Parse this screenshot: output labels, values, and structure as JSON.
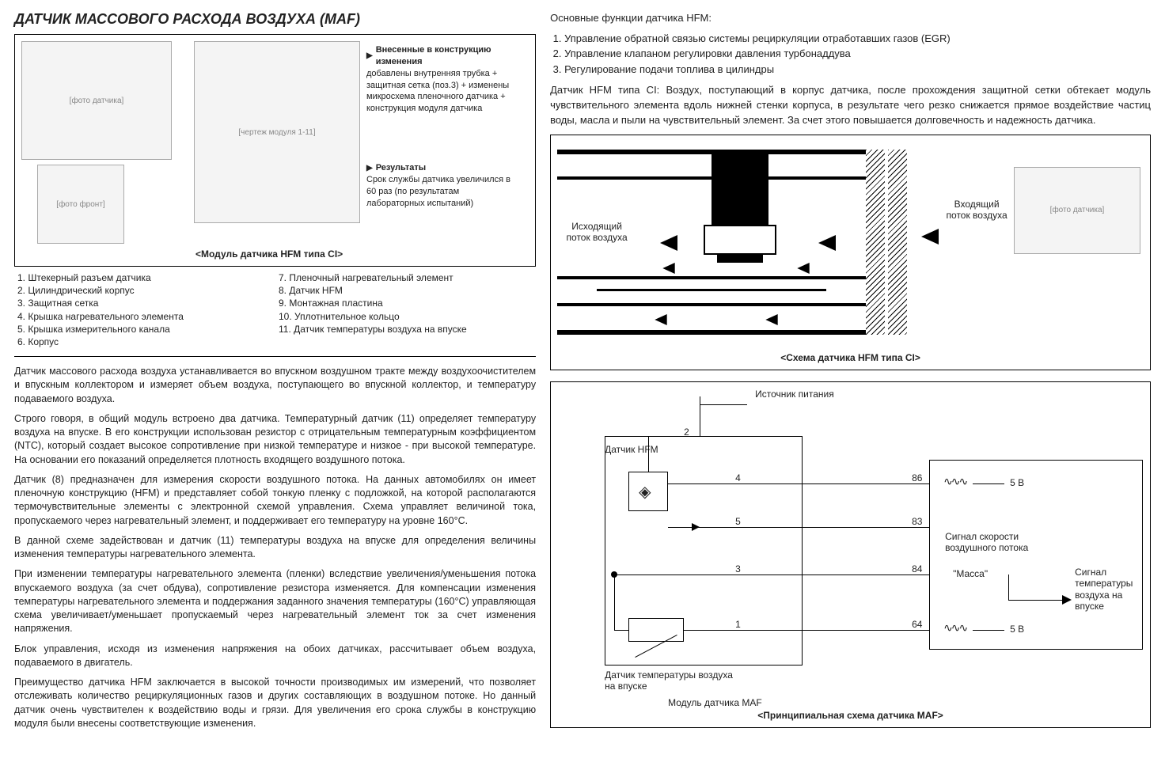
{
  "title": "ДАТЧИК МАССОВОГО РАСХОДА ВОЗДУХА (MAF)",
  "fig1": {
    "caption": "<Модуль датчика HFM типа CI>",
    "changes_hd": "Внесенные в конструкцию изменения",
    "changes_body": "добавлены внутренняя трубка + защитная сетка (поз.3) + изменены микросхема пленочного датчика + конструкция модуля датчика",
    "results_hd": "Результаты",
    "results_body": "Срок службы датчика увеличился в 60 раз (по результатам лабораторных испытаний)",
    "img1_alt": "[фото датчика]",
    "img2_alt": "[фото фронт]",
    "img3_alt": "[чертеж модуля 1-11]"
  },
  "legend_a": [
    "1.  Штекерный разъем датчика",
    "2.  Цилиндрический корпус",
    "3.  Защитная сетка",
    "4.  Крышка нагревательного элемента",
    "5.  Крышка измерительного канала",
    "6.  Корпус"
  ],
  "legend_b": [
    "7.  Пленочный нагревательный элемент",
    "8.  Датчик HFM",
    "9.  Монтажная пластина",
    "10. Уплотнительное кольцо",
    "11. Датчик температуры воздуха на впуске"
  ],
  "p1": "Датчик массового расхода воздуха устанавливается во впускном воздушном тракте между воздухоочистителем и впускным коллектором и измеряет объем воздуха, поступающего во впускной коллектор, и температуру подаваемого воздуха.",
  "p2": "Строго говоря, в общий модуль встроено два датчика. Температурный датчик (11) определяет температуру воздуха на впуске. В его конструкции использован резистор с отрицательным температурным коэффициентом (NTC), который создает высокое сопротивление при низкой температуре и низкое - при высокой температуре. На основании его показаний определяется плотность входящего воздушного потока.",
  "p3": "Датчик (8) предназначен для измерения скорости воздушного потока. На данных автомобилях он имеет пленочную конструкцию (HFM) и представляет собой тонкую пленку с подложкой, на которой располагаются термочувствительные элементы с электронной схемой управления. Схема управляет величиной тока, пропускаемого через нагревательный элемент, и поддерживает его температуру на уровне 160°C.",
  "p4": "В данной схеме задействован и датчик (11) температуры воздуха на впуске для определения величины изменения температуры нагревательного элемента.",
  "p5": "При изменении температуры нагревательного элемента (пленки) вследствие увеличения/уменьшения потока впускаемого воздуха (за счет обдува), сопротивление резистора изменяется. Для компенсации изменения температуры нагревательного элемента и поддержания заданного значения температуры (160°C) управляющая схема увеличивает/уменьшает пропускаемый через нагревательный элемент ток за счет изменения напряжения.",
  "p6": "Блок управления, исходя из изменения напряжения на обоих датчиках, рассчитывает объем воздуха, подаваемого в двигатель.",
  "p7": "Преимущество датчика HFM заключается в высокой точности производимых им измерений, что позволяет отслеживать количество рециркуляционных газов и других составляющих в воздушном потоке. Но данный датчик очень чувствителен к воздействию воды и грязи. Для увеличения его срока службы в конструкцию модуля были внесены соответствующие изменения.",
  "intro": "Основные функции датчика HFM:",
  "funcs": [
    "Управление обратной связью системы рециркуляции отработавших газов (EGR)",
    "Управление клапаном регулировки давления турбонаддува",
    "Регулирование подачи топлива в цилиндры"
  ],
  "ci_text": "Датчик HFM типа CI: Воздух, поступающий в корпус датчика, после прохождения защитной сетки обтекает модуль чувствительного элемента вдоль нижней стенки корпуса, в результате чего резко снижается прямое воздействие частиц воды, масла и пыли на чувствительный элемент. За счет этого повышается долговечность и надежность датчика.",
  "fig2": {
    "caption": "<Схема датчика HFM типа CI>",
    "in_label": "Входящий поток воздуха",
    "out_label": "Исходящий поток воздуха",
    "img_alt": "[фото датчика]"
  },
  "fig3": {
    "caption": "<Принципиальная схема датчика MAF>",
    "power": "Источник питания",
    "hfm": "Датчик HFM",
    "temp": "Датчик температуры воздуха на впуске",
    "module": "Модуль датчика MAF",
    "sig_flow": "Сигнал скорости воздушного потока",
    "ground": "\"Масса\"",
    "sig_temp": "Сигнал температуры воздуха на впуске",
    "v5a": "5 В",
    "v5b": "5 В",
    "pins_left": [
      "2",
      "4",
      "5",
      "3",
      "1"
    ],
    "pins_right": [
      "86",
      "83",
      "84",
      "64"
    ]
  },
  "colors": {
    "line": "#000000",
    "bg": "#ffffff",
    "img_bg": "#f4f4f4"
  }
}
